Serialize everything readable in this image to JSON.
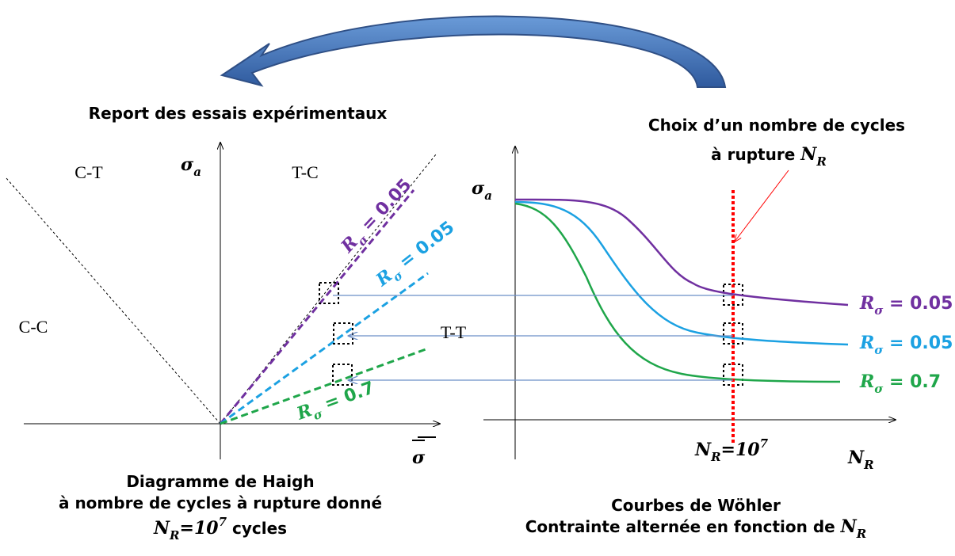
{
  "arrow_label": "Report des essais expérimentaux",
  "haigh": {
    "y_axis": {
      "symbol": "σ",
      "sub": "a"
    },
    "x_axis": {
      "symbol": "σ"
    },
    "regions": [
      "C-T",
      "T-C",
      "C-C",
      "T-T"
    ],
    "lines": [
      {
        "symbol": "R",
        "sub": "σ",
        "rest": " = 0.05",
        "color": "#7030a0"
      },
      {
        "symbol": "R",
        "sub": "σ",
        "rest": " = 0.05",
        "color": "#1ba1e2"
      },
      {
        "symbol": "R",
        "sub": "σ",
        "rest": " = 0.7",
        "color": "#1fa64a"
      }
    ],
    "caption": [
      "Diagramme de Haigh",
      "à nombre de cycles à rupture donné"
    ],
    "caption_math": {
      "symbol": "N",
      "sub": "R",
      "rest": "=10",
      "sup": "7",
      "tail": " cycles"
    }
  },
  "wohler": {
    "choice": [
      "Choix d’un nombre de cycles"
    ],
    "choice_math": {
      "pre": "à rupture ",
      "symbol": "N",
      "sub": "R"
    },
    "y_axis": {
      "symbol": "σ",
      "sub": "a"
    },
    "x_axis": {
      "symbol": "N",
      "sub": "R"
    },
    "nr_mark": {
      "symbol": "N",
      "sub": "R",
      "rest": "=10",
      "sup": "7"
    },
    "curves": [
      {
        "symbol": "R",
        "sub": "σ",
        "rest": " = 0.05",
        "color": "#7030a0"
      },
      {
        "symbol": "R",
        "sub": "σ",
        "rest": " = 0.05",
        "color": "#1ba1e2"
      },
      {
        "symbol": "R",
        "sub": "σ",
        "rest": " = 0.7",
        "color": "#1fa64a"
      }
    ],
    "caption": [
      "Courbes de Wöhler"
    ],
    "caption_math": {
      "pre": "Contrainte alternée en fonction de ",
      "symbol": "N",
      "sub": "R"
    }
  }
}
